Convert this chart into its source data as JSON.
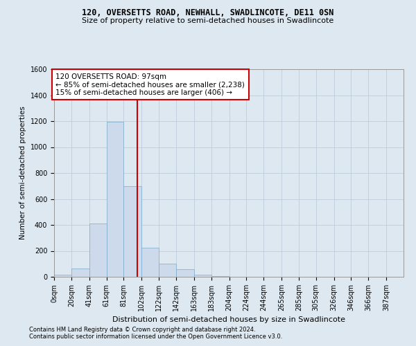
{
  "title1": "120, OVERSETTS ROAD, NEWHALL, SWADLINCOTE, DE11 0SN",
  "title2": "Size of property relative to semi-detached houses in Swadlincote",
  "xlabel": "Distribution of semi-detached houses by size in Swadlincote",
  "ylabel": "Number of semi-detached properties",
  "footnote1": "Contains HM Land Registry data © Crown copyright and database right 2024.",
  "footnote2": "Contains public sector information licensed under the Open Government Licence v3.0.",
  "annotation_line1": "120 OVERSETTS ROAD: 97sqm",
  "annotation_line2": "← 85% of semi-detached houses are smaller (2,238)",
  "annotation_line3": "15% of semi-detached houses are larger (406) →",
  "property_size": 97,
  "bin_edges": [
    0,
    20,
    41,
    61,
    81,
    102,
    122,
    142,
    163,
    183,
    204,
    224,
    244,
    265,
    285,
    305,
    326,
    346,
    366,
    387,
    407
  ],
  "bin_counts": [
    18,
    65,
    410,
    1195,
    700,
    225,
    100,
    58,
    18,
    4,
    2,
    0,
    0,
    0,
    0,
    0,
    0,
    0,
    0,
    0
  ],
  "bar_color": "#ccdaeb",
  "bar_edgecolor": "#7aaaca",
  "line_color": "#cc0000",
  "annotation_box_facecolor": "#ffffff",
  "annotation_box_edgecolor": "#cc0000",
  "grid_color": "#b8c8d8",
  "bg_color": "#dde8f0",
  "ylim": [
    0,
    1600
  ],
  "yticks": [
    0,
    200,
    400,
    600,
    800,
    1000,
    1200,
    1400,
    1600
  ],
  "title1_fontsize": 8.5,
  "title2_fontsize": 8.0,
  "xlabel_fontsize": 8.0,
  "ylabel_fontsize": 7.5,
  "tick_fontsize": 7.0,
  "footnote_fontsize": 6.0,
  "annotation_fontsize": 7.5
}
